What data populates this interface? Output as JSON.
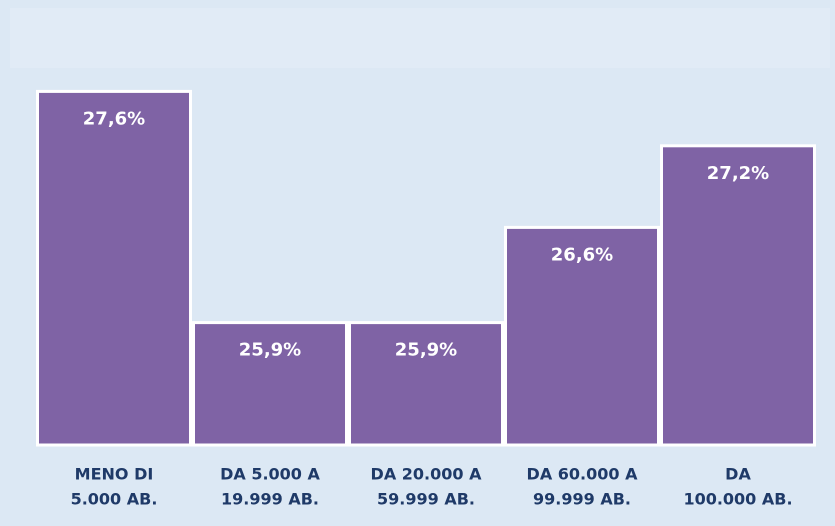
{
  "chart_data": {
    "type": "bar",
    "categories": [
      [
        "MENO DI",
        "5.000 AB."
      ],
      [
        "DA 5.000 A",
        "19.999 AB."
      ],
      [
        "DA 20.000 A",
        "59.999 AB."
      ],
      [
        "DA 60.000 A",
        "99.999 AB."
      ],
      [
        "DA",
        "100.000 AB."
      ]
    ],
    "values": [
      27.6,
      25.9,
      25.9,
      26.6,
      27.2
    ],
    "value_labels": [
      "27,6%",
      "25,9%",
      "25,9%",
      "26,6%",
      "27,2%"
    ],
    "color": "#7f63a5",
    "ylim": [
      25,
      28
    ]
  }
}
